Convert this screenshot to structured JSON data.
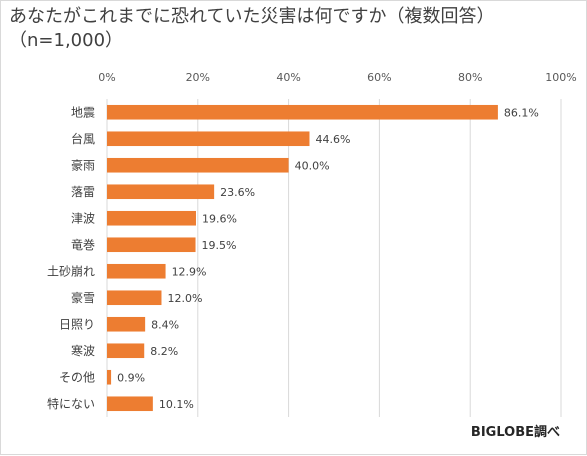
{
  "title": {
    "line1": "あなたがこれまでに恐れていた災害は何ですか（複数回答）",
    "line2": "（n=1,000）"
  },
  "source": "BIGLOBE調べ",
  "colors": {
    "bar": "#ED7D31",
    "grid": "#d9d9d9"
  },
  "chart_data": {
    "type": "bar",
    "orientation": "horizontal",
    "title": "あなたがこれまでに恐れていた災害は何ですか（複数回答）（n=1,000）",
    "xlim": [
      0,
      100
    ],
    "x_ticks": [
      "0%",
      "20%",
      "40%",
      "60%",
      "80%",
      "100%"
    ],
    "x_tick_values": [
      0,
      20,
      40,
      60,
      80,
      100
    ],
    "grid": true,
    "categories": [
      "地震",
      "台風",
      "豪雨",
      "落雷",
      "津波",
      "竜巻",
      "土砂崩れ",
      "豪雪",
      "日照り",
      "寒波",
      "その他",
      "特にない"
    ],
    "values": [
      86.1,
      44.6,
      40.0,
      23.6,
      19.6,
      19.5,
      12.9,
      12.0,
      8.4,
      8.2,
      0.9,
      10.1
    ],
    "value_labels": [
      "86.1%",
      "44.6%",
      "40.0%",
      "23.6%",
      "19.6%",
      "19.5%",
      "12.9%",
      "12.0%",
      "8.4%",
      "8.2%",
      "0.9%",
      "10.1%"
    ]
  }
}
